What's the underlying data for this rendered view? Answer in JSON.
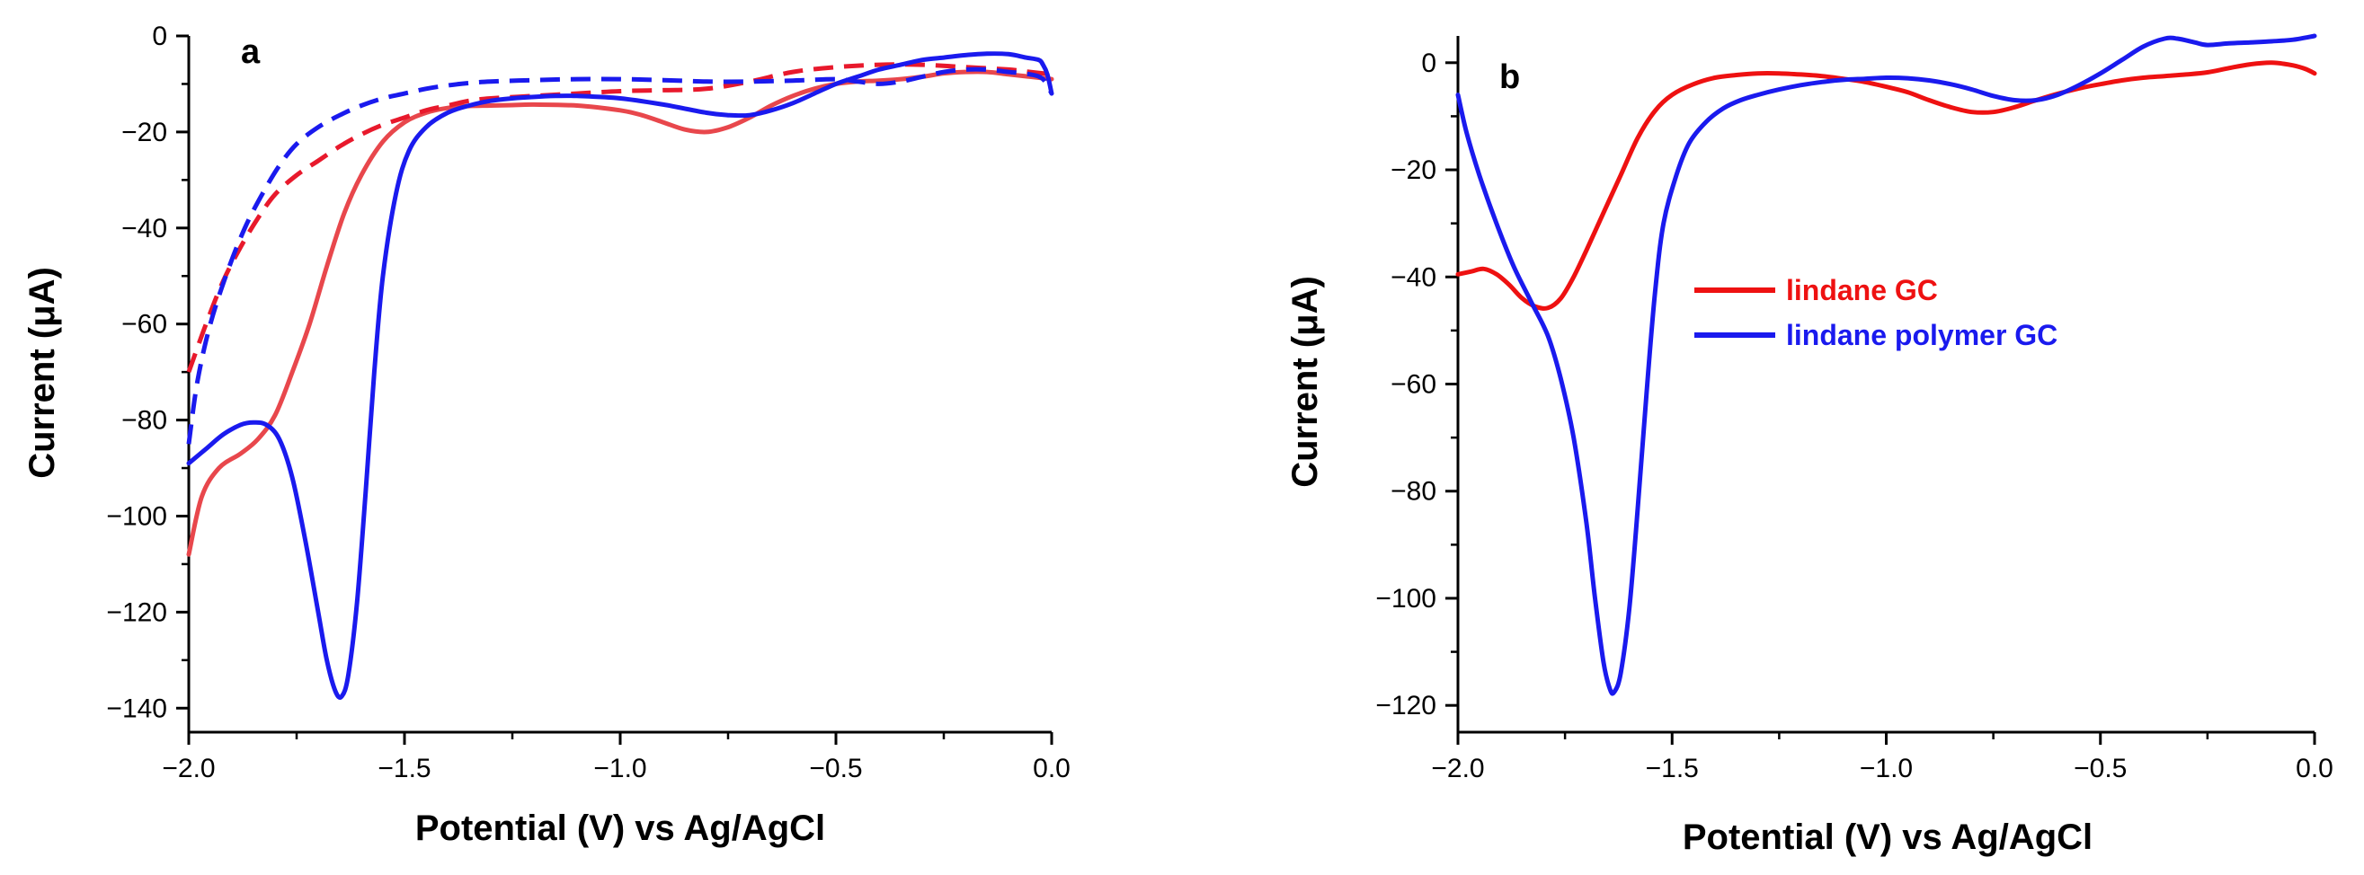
{
  "chart_data": [
    {
      "type": "line",
      "panel_label": "a",
      "xlabel": "Potential (V) vs Ag/AgCl",
      "ylabel": "Current (μA)",
      "xlim": [
        -2.0,
        0.0
      ],
      "ylim": [
        -145,
        0
      ],
      "xticks": [
        -2.0,
        -1.5,
        -1.0,
        -0.5,
        0.0
      ],
      "xtick_labels": [
        "−2.0",
        "−1.5",
        "−1.0",
        "−0.5",
        "0.0"
      ],
      "yticks": [
        0,
        -20,
        -40,
        -60,
        -80,
        -100,
        -120,
        -140
      ],
      "ytick_labels": [
        "0",
        "−20",
        "−40",
        "−60",
        "−80",
        "−100",
        "−120",
        "−140"
      ],
      "grid": false,
      "legend": null,
      "series": [
        {
          "color": "#e8474c",
          "dash": "solid",
          "points": [
            [
              -2.0,
              -108
            ],
            [
              -1.97,
              -96
            ],
            [
              -1.93,
              -90
            ],
            [
              -1.88,
              -87
            ],
            [
              -1.84,
              -84
            ],
            [
              -1.8,
              -79
            ],
            [
              -1.76,
              -70
            ],
            [
              -1.72,
              -60
            ],
            [
              -1.68,
              -48
            ],
            [
              -1.64,
              -37
            ],
            [
              -1.6,
              -29
            ],
            [
              -1.55,
              -22
            ],
            [
              -1.5,
              -18
            ],
            [
              -1.45,
              -16
            ],
            [
              -1.4,
              -15
            ],
            [
              -1.35,
              -14.6
            ],
            [
              -1.3,
              -14.5
            ],
            [
              -1.25,
              -14.4
            ],
            [
              -1.2,
              -14.3
            ],
            [
              -1.1,
              -14.5
            ],
            [
              -1.0,
              -15.5
            ],
            [
              -0.95,
              -16.5
            ],
            [
              -0.9,
              -18
            ],
            [
              -0.85,
              -19.5
            ],
            [
              -0.8,
              -20
            ],
            [
              -0.75,
              -19
            ],
            [
              -0.7,
              -17
            ],
            [
              -0.65,
              -14.5
            ],
            [
              -0.6,
              -12.5
            ],
            [
              -0.55,
              -11
            ],
            [
              -0.5,
              -10
            ],
            [
              -0.45,
              -9.5
            ],
            [
              -0.4,
              -9.3
            ],
            [
              -0.35,
              -9
            ],
            [
              -0.3,
              -8.5
            ],
            [
              -0.25,
              -7.8
            ],
            [
              -0.2,
              -7.5
            ],
            [
              -0.15,
              -7.5
            ],
            [
              -0.1,
              -8
            ],
            [
              -0.05,
              -8.5
            ],
            [
              0.0,
              -9
            ]
          ]
        },
        {
          "color": "#e8192c",
          "dash": "dashed",
          "points": [
            [
              -2.0,
              -70
            ],
            [
              -1.96,
              -60
            ],
            [
              -1.92,
              -51
            ],
            [
              -1.88,
              -44
            ],
            [
              -1.84,
              -38
            ],
            [
              -1.8,
              -33
            ],
            [
              -1.75,
              -29
            ],
            [
              -1.7,
              -26
            ],
            [
              -1.65,
              -23
            ],
            [
              -1.6,
              -20.5
            ],
            [
              -1.55,
              -18.5
            ],
            [
              -1.5,
              -17
            ],
            [
              -1.45,
              -15.5
            ],
            [
              -1.4,
              -14.5
            ],
            [
              -1.35,
              -13.5
            ],
            [
              -1.3,
              -13
            ],
            [
              -1.2,
              -12.5
            ],
            [
              -1.1,
              -12
            ],
            [
              -1.0,
              -11.5
            ],
            [
              -0.9,
              -11.3
            ],
            [
              -0.8,
              -11
            ],
            [
              -0.7,
              -9.5
            ],
            [
              -0.6,
              -7.5
            ],
            [
              -0.5,
              -6.5
            ],
            [
              -0.4,
              -6
            ],
            [
              -0.3,
              -6
            ],
            [
              -0.2,
              -6.5
            ],
            [
              -0.1,
              -7
            ],
            [
              -0.05,
              -7.5
            ],
            [
              0.0,
              -8
            ]
          ]
        },
        {
          "color": "#1a1aee",
          "dash": "solid",
          "points": [
            [
              -2.0,
              -89
            ],
            [
              -1.96,
              -86
            ],
            [
              -1.92,
              -83
            ],
            [
              -1.88,
              -81
            ],
            [
              -1.85,
              -80.5
            ],
            [
              -1.82,
              -81
            ],
            [
              -1.79,
              -84
            ],
            [
              -1.76,
              -92
            ],
            [
              -1.73,
              -105
            ],
            [
              -1.7,
              -120
            ],
            [
              -1.68,
              -130
            ],
            [
              -1.66,
              -136.5
            ],
            [
              -1.645,
              -137.5
            ],
            [
              -1.63,
              -133
            ],
            [
              -1.61,
              -118
            ],
            [
              -1.59,
              -95
            ],
            [
              -1.57,
              -70
            ],
            [
              -1.55,
              -50
            ],
            [
              -1.52,
              -33
            ],
            [
              -1.49,
              -24
            ],
            [
              -1.45,
              -19
            ],
            [
              -1.4,
              -16
            ],
            [
              -1.35,
              -14.5
            ],
            [
              -1.3,
              -13.5
            ],
            [
              -1.25,
              -13
            ],
            [
              -1.2,
              -12.7
            ],
            [
              -1.15,
              -12.5
            ],
            [
              -1.1,
              -12.5
            ],
            [
              -1.0,
              -13
            ],
            [
              -0.9,
              -14.3
            ],
            [
              -0.8,
              -16
            ],
            [
              -0.75,
              -16.5
            ],
            [
              -0.7,
              -16.5
            ],
            [
              -0.65,
              -15.5
            ],
            [
              -0.6,
              -14
            ],
            [
              -0.55,
              -12
            ],
            [
              -0.5,
              -10
            ],
            [
              -0.45,
              -8.5
            ],
            [
              -0.4,
              -7
            ],
            [
              -0.35,
              -6
            ],
            [
              -0.3,
              -5
            ],
            [
              -0.25,
              -4.5
            ],
            [
              -0.2,
              -4
            ],
            [
              -0.15,
              -3.7
            ],
            [
              -0.1,
              -3.8
            ],
            [
              -0.06,
              -4.5
            ],
            [
              -0.03,
              -5
            ],
            [
              -0.02,
              -6
            ],
            [
              -0.01,
              -8
            ],
            [
              0.0,
              -12
            ]
          ]
        },
        {
          "color": "#1a1aee",
          "dash": "dashed",
          "points": [
            [
              -2.0,
              -85
            ],
            [
              -1.98,
              -72
            ],
            [
              -1.95,
              -60
            ],
            [
              -1.91,
              -49
            ],
            [
              -1.87,
              -40
            ],
            [
              -1.83,
              -33
            ],
            [
              -1.79,
              -27
            ],
            [
              -1.75,
              -22.5
            ],
            [
              -1.7,
              -19
            ],
            [
              -1.65,
              -16.5
            ],
            [
              -1.6,
              -14.5
            ],
            [
              -1.55,
              -13
            ],
            [
              -1.5,
              -12
            ],
            [
              -1.45,
              -11
            ],
            [
              -1.4,
              -10.3
            ],
            [
              -1.35,
              -9.8
            ],
            [
              -1.3,
              -9.5
            ],
            [
              -1.2,
              -9.2
            ],
            [
              -1.1,
              -9
            ],
            [
              -1.0,
              -9
            ],
            [
              -0.9,
              -9.2
            ],
            [
              -0.8,
              -9.5
            ],
            [
              -0.7,
              -9.5
            ],
            [
              -0.6,
              -9.3
            ],
            [
              -0.5,
              -9
            ],
            [
              -0.45,
              -9.5
            ],
            [
              -0.4,
              -10
            ],
            [
              -0.35,
              -9.5
            ],
            [
              -0.3,
              -8.5
            ],
            [
              -0.25,
              -7.5
            ],
            [
              -0.2,
              -7
            ],
            [
              -0.15,
              -7
            ],
            [
              -0.1,
              -7.5
            ],
            [
              -0.05,
              -8
            ],
            [
              -0.02,
              -9
            ],
            [
              0.0,
              -12
            ]
          ]
        }
      ]
    },
    {
      "type": "line",
      "panel_label": "b",
      "xlabel": "Potential (V) vs Ag/AgCl",
      "ylabel": "Current (μA)",
      "xlim": [
        -2.0,
        0.0
      ],
      "ylim": [
        -125,
        5
      ],
      "xticks": [
        -2.0,
        -1.5,
        -1.0,
        -0.5,
        0.0
      ],
      "xtick_labels": [
        "−2.0",
        "−1.5",
        "−1.0",
        "−0.5",
        "0.0"
      ],
      "yticks": [
        0,
        -20,
        -40,
        -60,
        -80,
        -100,
        -120
      ],
      "ytick_labels": [
        "0",
        "−20",
        "−40",
        "−60",
        "−80",
        "−100",
        "−120"
      ],
      "grid": false,
      "legend": "center",
      "series": [
        {
          "name": "lindane GC",
          "color": "#ee1111",
          "dash": "solid",
          "points": [
            [
              -2.0,
              -39.5
            ],
            [
              -1.97,
              -39
            ],
            [
              -1.94,
              -38.5
            ],
            [
              -1.91,
              -39.5
            ],
            [
              -1.88,
              -41.5
            ],
            [
              -1.85,
              -44
            ],
            [
              -1.82,
              -45.5
            ],
            [
              -1.79,
              -45.8
            ],
            [
              -1.76,
              -44
            ],
            [
              -1.73,
              -40
            ],
            [
              -1.7,
              -35
            ],
            [
              -1.66,
              -28
            ],
            [
              -1.62,
              -21
            ],
            [
              -1.58,
              -14
            ],
            [
              -1.54,
              -9
            ],
            [
              -1.5,
              -6
            ],
            [
              -1.45,
              -4
            ],
            [
              -1.4,
              -2.8
            ],
            [
              -1.35,
              -2.3
            ],
            [
              -1.3,
              -2
            ],
            [
              -1.25,
              -2
            ],
            [
              -1.2,
              -2.2
            ],
            [
              -1.15,
              -2.5
            ],
            [
              -1.1,
              -3
            ],
            [
              -1.05,
              -3.6
            ],
            [
              -1.0,
              -4.5
            ],
            [
              -0.95,
              -5.5
            ],
            [
              -0.9,
              -7
            ],
            [
              -0.85,
              -8.3
            ],
            [
              -0.8,
              -9.2
            ],
            [
              -0.75,
              -9.2
            ],
            [
              -0.7,
              -8.3
            ],
            [
              -0.65,
              -7
            ],
            [
              -0.6,
              -5.8
            ],
            [
              -0.55,
              -4.8
            ],
            [
              -0.5,
              -4
            ],
            [
              -0.45,
              -3.3
            ],
            [
              -0.4,
              -2.8
            ],
            [
              -0.35,
              -2.5
            ],
            [
              -0.3,
              -2.2
            ],
            [
              -0.25,
              -1.8
            ],
            [
              -0.2,
              -1
            ],
            [
              -0.15,
              -0.3
            ],
            [
              -0.1,
              0
            ],
            [
              -0.05,
              -0.5
            ],
            [
              -0.02,
              -1.2
            ],
            [
              0.0,
              -2
            ]
          ]
        },
        {
          "name": "lindane polymer GC",
          "color": "#1a1aee",
          "dash": "solid",
          "points": [
            [
              -2.0,
              -6
            ],
            [
              -1.98,
              -13
            ],
            [
              -1.95,
              -21
            ],
            [
              -1.91,
              -30
            ],
            [
              -1.87,
              -38
            ],
            [
              -1.83,
              -44.5
            ],
            [
              -1.79,
              -51
            ],
            [
              -1.76,
              -59
            ],
            [
              -1.73,
              -70
            ],
            [
              -1.7,
              -86
            ],
            [
              -1.68,
              -100
            ],
            [
              -1.66,
              -112
            ],
            [
              -1.645,
              -117
            ],
            [
              -1.635,
              -117.5
            ],
            [
              -1.62,
              -114
            ],
            [
              -1.6,
              -102
            ],
            [
              -1.58,
              -83
            ],
            [
              -1.56,
              -62
            ],
            [
              -1.54,
              -43
            ],
            [
              -1.52,
              -30
            ],
            [
              -1.49,
              -21
            ],
            [
              -1.46,
              -15
            ],
            [
              -1.42,
              -11
            ],
            [
              -1.38,
              -8.5
            ],
            [
              -1.34,
              -7
            ],
            [
              -1.3,
              -6
            ],
            [
              -1.25,
              -5
            ],
            [
              -1.2,
              -4.2
            ],
            [
              -1.15,
              -3.6
            ],
            [
              -1.1,
              -3.2
            ],
            [
              -1.05,
              -3
            ],
            [
              -1.0,
              -2.8
            ],
            [
              -0.95,
              -2.9
            ],
            [
              -0.9,
              -3.3
            ],
            [
              -0.85,
              -4
            ],
            [
              -0.8,
              -5
            ],
            [
              -0.75,
              -6.2
            ],
            [
              -0.7,
              -7
            ],
            [
              -0.65,
              -7
            ],
            [
              -0.6,
              -6
            ],
            [
              -0.55,
              -4.2
            ],
            [
              -0.5,
              -2
            ],
            [
              -0.45,
              0.5
            ],
            [
              -0.4,
              3
            ],
            [
              -0.35,
              4.5
            ],
            [
              -0.32,
              4.5
            ],
            [
              -0.28,
              3.8
            ],
            [
              -0.25,
              3.3
            ],
            [
              -0.2,
              3.6
            ],
            [
              -0.15,
              3.8
            ],
            [
              -0.1,
              4
            ],
            [
              -0.05,
              4.3
            ],
            [
              0.0,
              5
            ]
          ]
        }
      ]
    }
  ]
}
